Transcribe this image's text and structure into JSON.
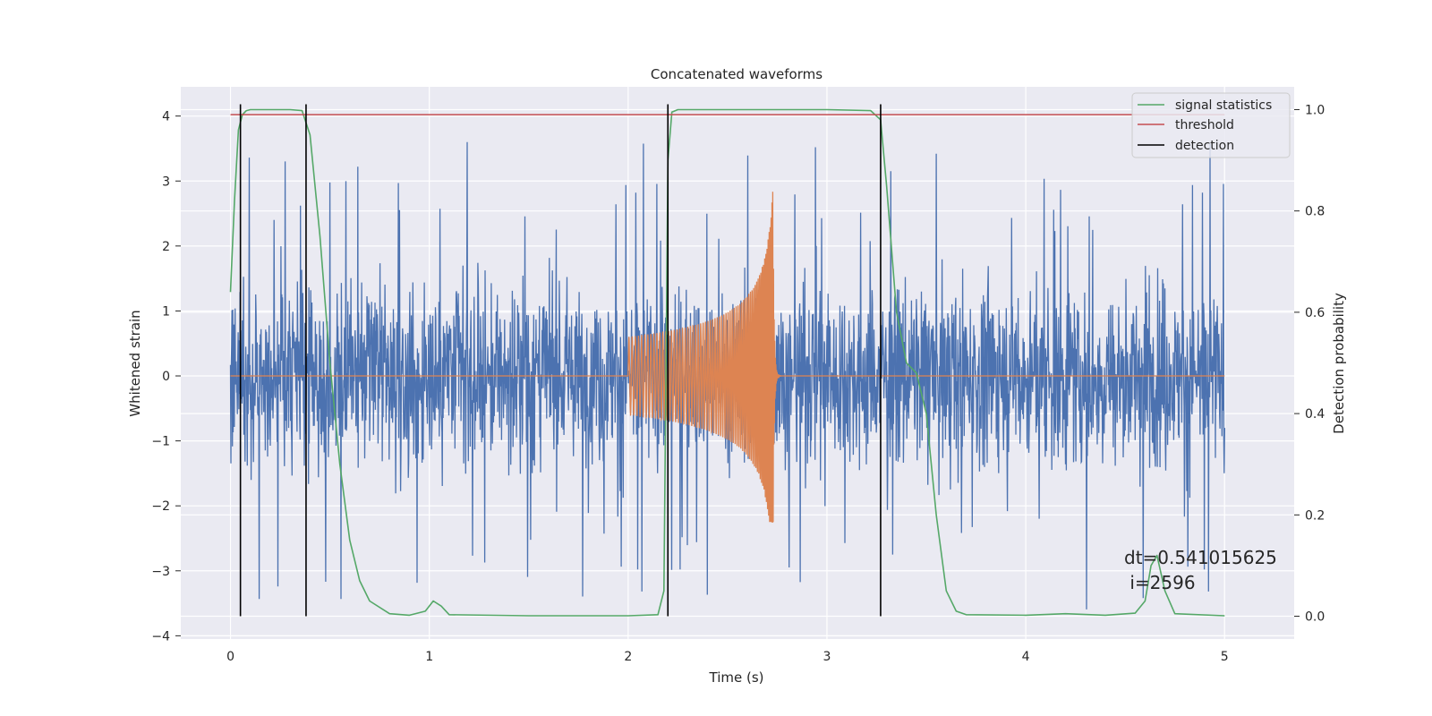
{
  "chart_data": {
    "type": "line",
    "title": "Concatenated waveforms",
    "xlabel": "Time (s)",
    "ylabel": "Whitened strain",
    "y2label": "Detection probability",
    "xlim": [
      -0.25,
      5.35
    ],
    "ylim": [
      -4.05,
      4.45
    ],
    "y2lim": [
      -0.045,
      1.045
    ],
    "xticks": [
      0,
      1,
      2,
      3,
      4,
      5
    ],
    "xtick_labels": [
      "0",
      "1",
      "2",
      "3",
      "4",
      "5"
    ],
    "yticks": [
      -4,
      -3,
      -2,
      -1,
      0,
      1,
      2,
      3,
      4
    ],
    "ytick_labels": [
      "−4",
      "−3",
      "−2",
      "−1",
      "0",
      "1",
      "2",
      "3",
      "4"
    ],
    "y2ticks": [
      0.0,
      0.2,
      0.4,
      0.6,
      0.8,
      1.0
    ],
    "y2tick_labels": [
      "0.0",
      "0.2",
      "0.4",
      "0.6",
      "0.8",
      "1.0"
    ],
    "grid": true,
    "legend_position": "top-right",
    "background_color": "#eaeaf2",
    "series": [
      {
        "name": "",
        "kind": "noise",
        "color": "#4c72b0",
        "x_range": [
          0,
          5
        ],
        "typical_amplitude": 1.2,
        "max_peak": 4.0,
        "min_trough": -3.7
      },
      {
        "name": "",
        "kind": "chirp",
        "color": "#dd8452",
        "x_start": 2.0,
        "x_merger": 2.73,
        "x_end": 5.0,
        "start_amplitude": 0.6,
        "peak_value": 2.85,
        "trough_value": -2.25
      },
      {
        "name": "signal statistics",
        "axis": "right",
        "color": "#55a868",
        "x": [
          0.0,
          0.02,
          0.04,
          0.06,
          0.08,
          0.1,
          0.2,
          0.3,
          0.36,
          0.4,
          0.45,
          0.5,
          0.55,
          0.6,
          0.65,
          0.7,
          0.8,
          0.9,
          0.98,
          1.02,
          1.06,
          1.1,
          1.5,
          2.0,
          2.15,
          2.18,
          2.2,
          2.22,
          2.25,
          2.5,
          3.0,
          3.22,
          3.27,
          3.3,
          3.35,
          3.4,
          3.45,
          3.5,
          3.55,
          3.6,
          3.65,
          3.7,
          4.0,
          4.2,
          4.4,
          4.55,
          4.6,
          4.63,
          4.66,
          4.7,
          4.75,
          5.0
        ],
        "y": [
          0.64,
          0.82,
          0.96,
          0.99,
          0.998,
          1.0,
          1.0,
          1.0,
          0.998,
          0.95,
          0.75,
          0.5,
          0.3,
          0.15,
          0.07,
          0.03,
          0.005,
          0.002,
          0.01,
          0.03,
          0.02,
          0.003,
          0.001,
          0.001,
          0.003,
          0.05,
          0.9,
          0.995,
          1.0,
          1.0,
          1.0,
          0.998,
          0.98,
          0.85,
          0.6,
          0.5,
          0.48,
          0.4,
          0.2,
          0.05,
          0.01,
          0.003,
          0.002,
          0.005,
          0.002,
          0.006,
          0.03,
          0.1,
          0.12,
          0.05,
          0.005,
          0.001
        ]
      },
      {
        "name": "threshold",
        "axis": "right",
        "color": "#c44e52",
        "x": [
          0,
          5
        ],
        "y": [
          0.99,
          0.99
        ]
      }
    ],
    "detections": {
      "name": "detection",
      "color": "#000000",
      "x": [
        0.05,
        0.38,
        2.2,
        3.27
      ]
    },
    "annotation": {
      "line1": "dt=0.541015625",
      "line2": " i=2596"
    }
  }
}
